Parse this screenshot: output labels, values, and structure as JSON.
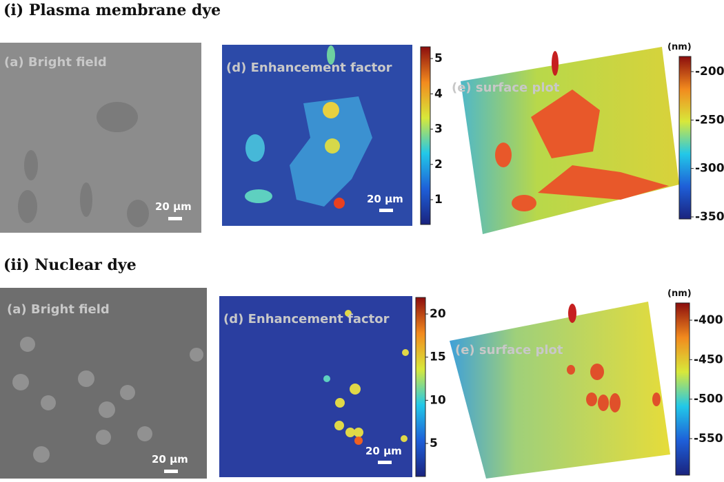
{
  "sections": [
    {
      "title": "(i) Plasma membrane dye",
      "bright_field": {
        "label": "(a) Bright field",
        "scale_bar": "20 µm"
      },
      "enhancement": {
        "label": "(d) Enhancement factor",
        "scale_bar": "20 µm",
        "colorbar_ticks": [
          5,
          4,
          3,
          2,
          1
        ]
      },
      "surface": {
        "label": "(e) surface plot",
        "unit": "(nm)",
        "colorbar_ticks": [
          -200,
          -250,
          -300,
          -350
        ]
      }
    },
    {
      "title": "(ii) Nuclear dye",
      "bright_field": {
        "label": "(a) Bright field",
        "scale_bar": "20 µm"
      },
      "enhancement": {
        "label": "(d) Enhancement factor",
        "scale_bar": "20 µm",
        "colorbar_ticks": [
          20,
          15,
          10,
          5
        ]
      },
      "surface": {
        "label": "(e) surface plot",
        "unit": "(nm)",
        "colorbar_ticks": [
          -400,
          -450,
          -500,
          -550
        ]
      }
    }
  ]
}
